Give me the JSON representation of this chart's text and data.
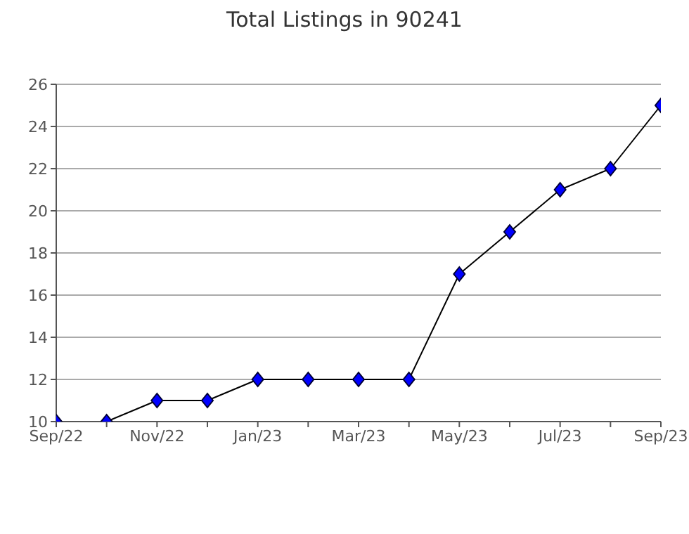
{
  "chart_data": {
    "type": "line",
    "title": "Total Listings in 90241",
    "categories": [
      "Sep/22",
      null,
      "Nov/22",
      null,
      "Jan/23",
      null,
      "Mar/23",
      null,
      "May/23",
      null,
      "Jul/23",
      null,
      "Sep/23"
    ],
    "series": [
      {
        "color": "#0000ff",
        "values": [
          10,
          10,
          11,
          11,
          12,
          12,
          12,
          12,
          17,
          19,
          21,
          22,
          25
        ]
      }
    ],
    "ylim": [
      10,
      26
    ],
    "yticks": [
      10,
      12,
      14,
      16,
      18,
      20,
      22,
      24,
      26
    ],
    "grid": "y",
    "marker": "diamond",
    "line_style": "solid",
    "legend": false
  }
}
